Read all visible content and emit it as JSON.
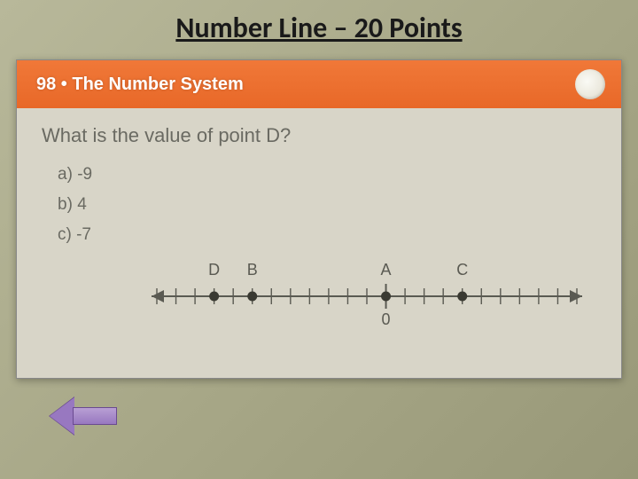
{
  "title": "Number Line – 20 Points",
  "banner": {
    "text": "98 • The Number System",
    "background_color": "#e86828",
    "text_color": "#ffffff"
  },
  "question": "What is the value of point D?",
  "options": [
    {
      "label": "a)",
      "value": "-9"
    },
    {
      "label": "b)",
      "value": "4"
    },
    {
      "label": "c)",
      "value": "-7"
    }
  ],
  "numberline": {
    "min": -12,
    "max": 10,
    "tick_step": 1,
    "zero_label": "0",
    "points": [
      {
        "name": "D",
        "value": -9
      },
      {
        "name": "B",
        "value": -7
      },
      {
        "name": "A",
        "value": 0
      },
      {
        "name": "C",
        "value": 4
      }
    ],
    "line_color": "#5a5a52",
    "tick_color": "#5a5a52",
    "point_color": "#3a3a32",
    "label_color": "#5a5a52",
    "label_fontsize": 18
  },
  "colors": {
    "slide_bg": "#a8a888",
    "page_bg": "#d8d5c8",
    "text": "#6a6a62",
    "arrow_fill": "#9878c0",
    "arrow_border": "#6a4a90"
  }
}
